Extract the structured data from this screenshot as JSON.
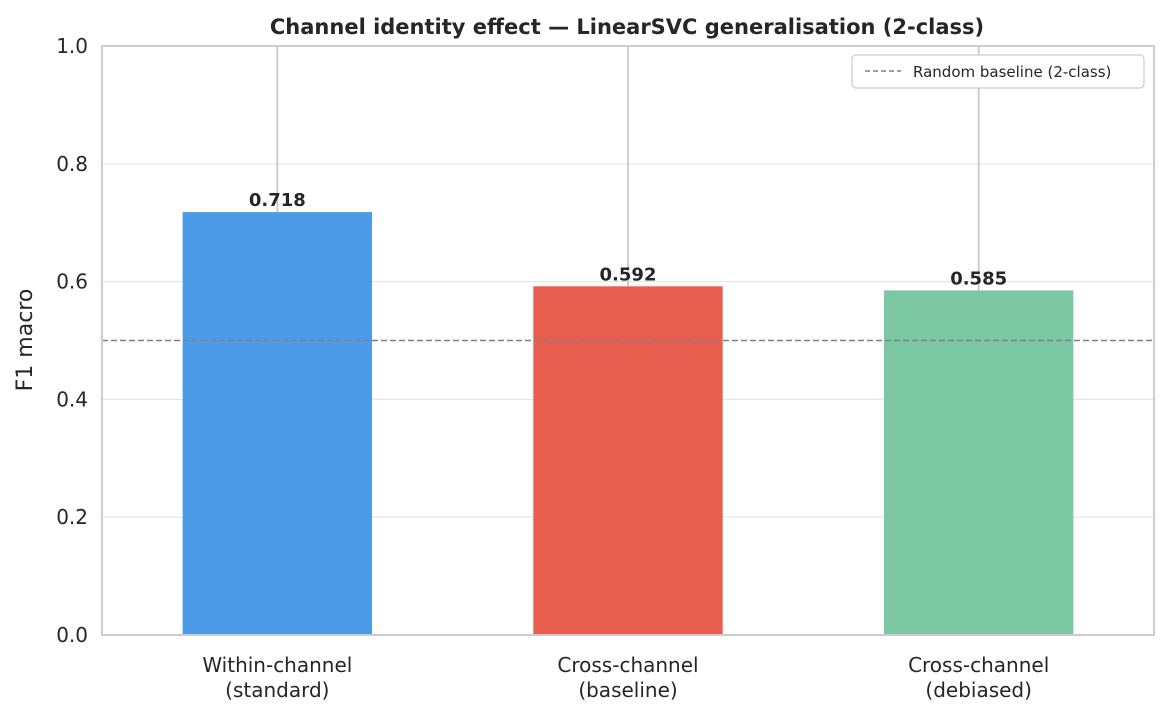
{
  "chart_data": {
    "type": "bar",
    "title": "Channel identity effect — LinearSVC generalisation (2-class)",
    "xlabel": "",
    "ylabel": "F1 macro",
    "ylim": [
      0,
      1.0
    ],
    "yticks": [
      "0.0",
      "0.2",
      "0.4",
      "0.6",
      "0.8",
      "1.0"
    ],
    "categories": [
      [
        "Within-channel",
        "(standard)"
      ],
      [
        "Cross-channel",
        "(baseline)"
      ],
      [
        "Cross-channel",
        "(debiased)"
      ]
    ],
    "values": [
      0.718,
      0.592,
      0.585
    ],
    "value_labels": [
      "0.718",
      "0.592",
      "0.585"
    ],
    "colors": [
      "#4c9be8",
      "#e85e4e",
      "#7dc8a4"
    ],
    "error_bars_upper": [
      1.0,
      1.0,
      1.0
    ],
    "baseline": {
      "value": 0.5,
      "label": "Random baseline (2-class)",
      "color": "#808080"
    },
    "legend_position": "top-right",
    "grid": true
  }
}
